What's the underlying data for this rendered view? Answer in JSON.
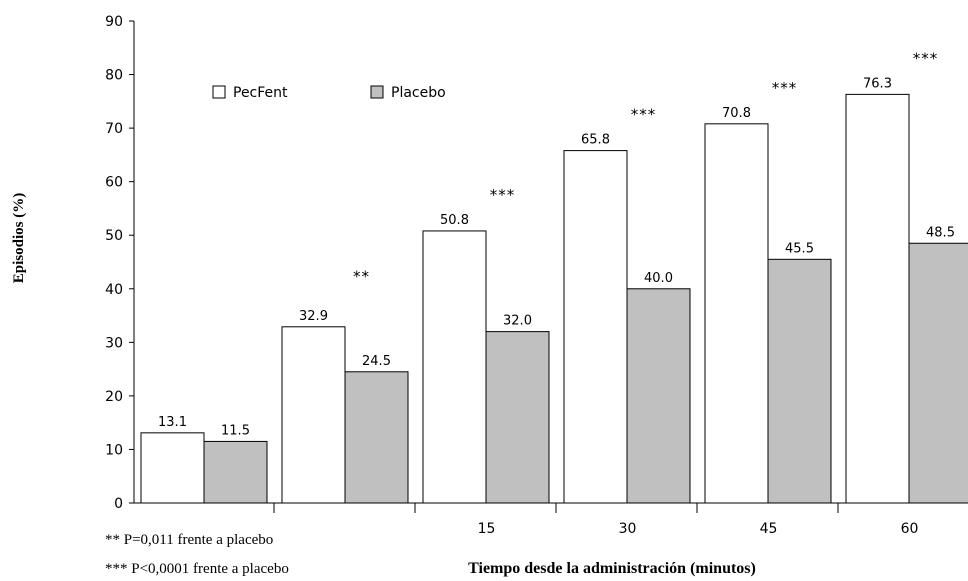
{
  "chart_data": {
    "type": "bar",
    "categories": [
      "",
      "",
      "15",
      "30",
      "45",
      "60"
    ],
    "series": [
      {
        "name": "PecFent",
        "values": [
          13.1,
          32.9,
          50.8,
          65.8,
          70.8,
          76.3
        ],
        "labels": [
          "13.1",
          "32.9",
          "50.8",
          "65.8",
          "70.8",
          "76.3"
        ],
        "color": "#ffffff"
      },
      {
        "name": "Placebo",
        "values": [
          11.5,
          24.5,
          32.0,
          40.0,
          45.5,
          48.5
        ],
        "labels": [
          "11.5",
          "24.5",
          "32.0",
          "40.0",
          "45.5",
          "48.5"
        ],
        "color": "#c0c0c0"
      }
    ],
    "significance": [
      "",
      "**",
      "***",
      "***",
      "***",
      "***"
    ],
    "ylabel": "Episodios (%)",
    "xlabel": "Tiempo desde la administración (minutos)",
    "ylim": [
      0,
      90
    ],
    "yticks": [
      "0",
      "10",
      "20",
      "30",
      "40",
      "50",
      "60",
      "70",
      "80",
      "90"
    ],
    "legend_position": "top-left",
    "grid": false,
    "footnotes": [
      "** P=0,011 frente a placebo",
      "*** P<0,0001 frente a placebo"
    ]
  }
}
